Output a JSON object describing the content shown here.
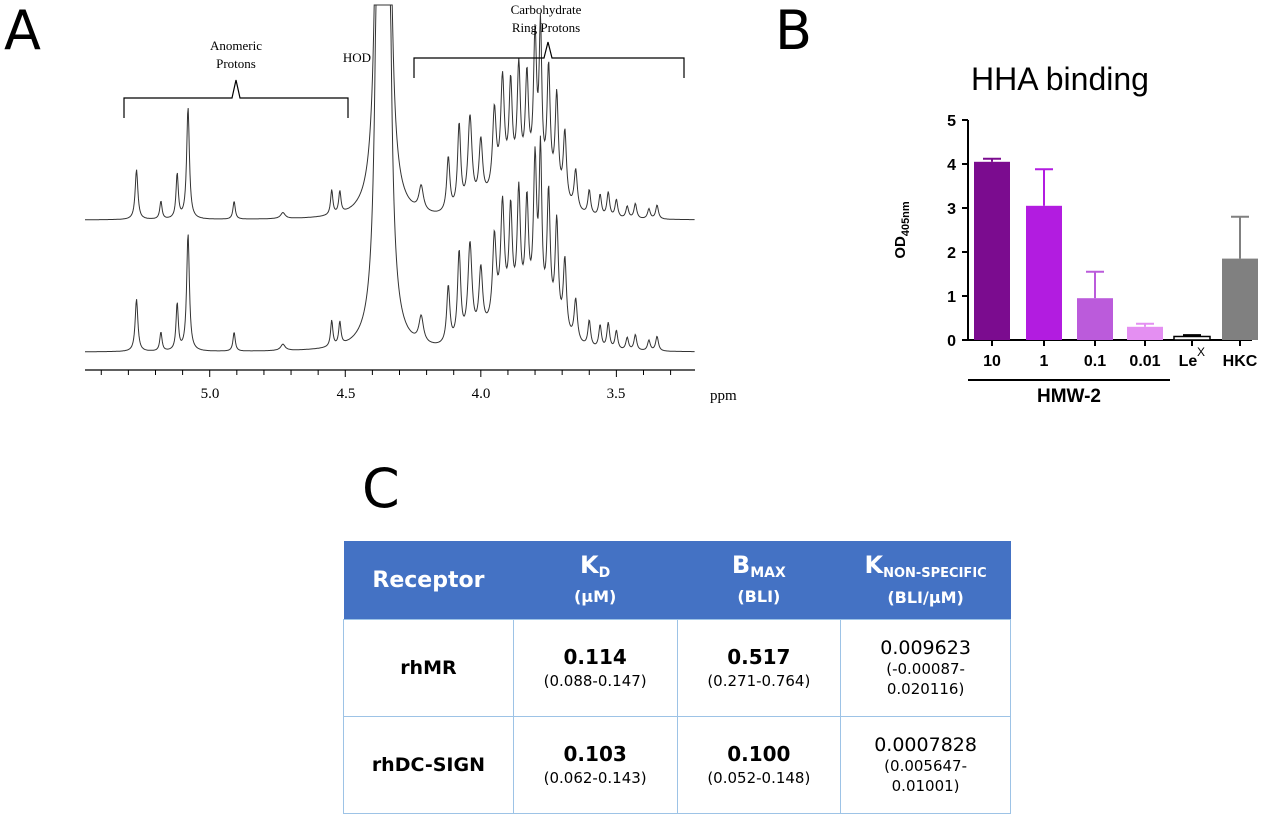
{
  "panels": {
    "a": "A",
    "b": "B",
    "c": "C"
  },
  "nmr": {
    "annotations": {
      "anomeric": [
        "Anomeric",
        "Protons"
      ],
      "hod": "HOD",
      "carbohydrate": [
        "Carbohydrate",
        "Ring Protons"
      ]
    },
    "axis_unit": "ppm",
    "tick_labels": [
      "5.0",
      "4.5",
      "4.0",
      "3.5"
    ]
  },
  "chart_data": {
    "type": "bar",
    "title": "HHA binding",
    "ylabel": "OD",
    "ylabel_sub": "405nm",
    "ylim": [
      0,
      5
    ],
    "yticks": [
      "0",
      "1",
      "2",
      "3",
      "4",
      "5"
    ],
    "categories": [
      "10",
      "1",
      "0.1",
      "0.01",
      "Le",
      "HKC"
    ],
    "category_superscripts": [
      "",
      "",
      "",
      "",
      "X",
      ""
    ],
    "values": [
      4.05,
      3.05,
      0.95,
      0.3,
      0.08,
      1.85
    ],
    "errors": [
      0.07,
      0.83,
      0.6,
      0.07,
      0.03,
      0.95
    ],
    "colors": [
      "#7b0c8f",
      "#b21ce0",
      "#bb5bdb",
      "#e48ff2",
      "#ffffff",
      "#808080"
    ],
    "group_label": "HMW-2"
  },
  "table": {
    "headers": [
      {
        "main": "Receptor",
        "sub": "",
        "unit": ""
      },
      {
        "main": "K",
        "sub": "D",
        "unit": "(µM)"
      },
      {
        "main": "B",
        "sub": "MAX",
        "unit": "(BLI)"
      },
      {
        "main": "K",
        "sub": "NON-SPECIFIC",
        "unit": "(BLI/µM)"
      }
    ],
    "rows": [
      {
        "receptor": "rhMR",
        "kd": "0.114",
        "kd_ci": "(0.088-0.147)",
        "bmax": "0.517",
        "bmax_ci": "(0.271-0.764)",
        "kns": "0.009623",
        "kns_ci_1": "(-0.00087-",
        "kns_ci_2": "0.020116)"
      },
      {
        "receptor": "rhDC-SIGN",
        "kd": "0.103",
        "kd_ci": "(0.062-0.143)",
        "bmax": "0.100",
        "bmax_ci": "(0.052-0.148)",
        "kns": "0.0007828",
        "kns_ci_1": "(0.005647-",
        "kns_ci_2": "0.01001)"
      }
    ]
  }
}
